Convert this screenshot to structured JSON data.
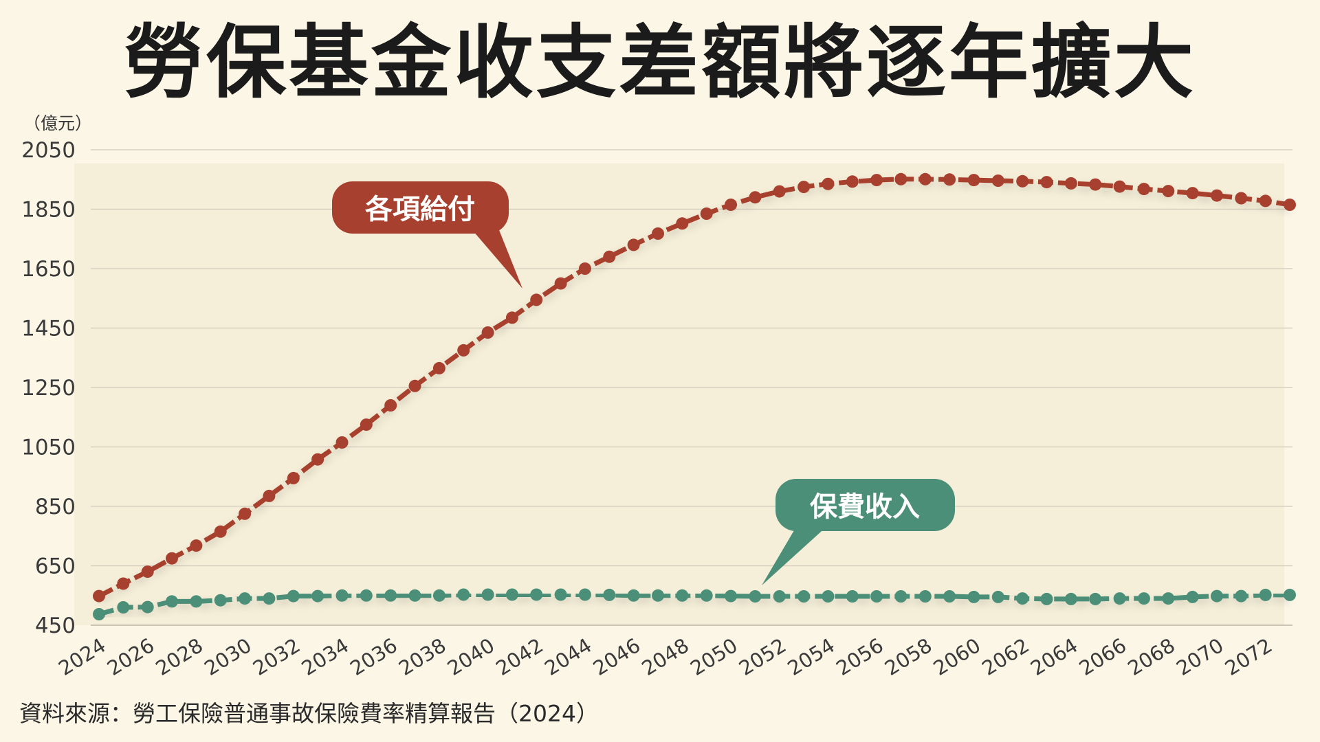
{
  "title": "勞保基金收支差額將逐年擴大",
  "source": "資料來源：勞工保險普通事故保險費率精算報告（2024）",
  "chart_data": {
    "type": "line",
    "unit_label": "（億元）",
    "ylim": [
      450,
      2050
    ],
    "yticks": [
      450,
      650,
      850,
      1050,
      1250,
      1450,
      1650,
      1850,
      2050
    ],
    "x": [
      2024,
      2025,
      2026,
      2027,
      2028,
      2029,
      2030,
      2031,
      2032,
      2033,
      2034,
      2035,
      2036,
      2037,
      2038,
      2039,
      2040,
      2041,
      2042,
      2043,
      2044,
      2045,
      2046,
      2047,
      2048,
      2049,
      2050,
      2051,
      2052,
      2053,
      2054,
      2055,
      2056,
      2057,
      2058,
      2059,
      2060,
      2061,
      2062,
      2063,
      2064,
      2065,
      2066,
      2067,
      2068,
      2069,
      2070,
      2071,
      2072,
      2073
    ],
    "xticks": [
      "2024",
      "2026",
      "2028",
      "2030",
      "2032",
      "2034",
      "2036",
      "2038",
      "2040",
      "2042",
      "2044",
      "2046",
      "2048",
      "2050",
      "2052",
      "2054",
      "2056",
      "2058",
      "2060",
      "2062",
      "2064",
      "2066",
      "2068",
      "2070",
      "2072"
    ],
    "grid": true,
    "series": [
      {
        "name": "各項給付",
        "color": "#a8402f",
        "values": [
          548,
          590,
          630,
          675,
          718,
          765,
          825,
          885,
          945,
          1008,
          1065,
          1125,
          1190,
          1255,
          1315,
          1375,
          1435,
          1485,
          1545,
          1600,
          1650,
          1690,
          1730,
          1768,
          1802,
          1835,
          1865,
          1890,
          1910,
          1925,
          1935,
          1943,
          1948,
          1951,
          1951,
          1950,
          1948,
          1946,
          1944,
          1941,
          1937,
          1933,
          1926,
          1918,
          1911,
          1904,
          1896,
          1887,
          1878,
          1865
        ]
      },
      {
        "name": "保費收入",
        "color": "#4b8f78",
        "values": [
          487,
          510,
          511,
          530,
          530,
          534,
          540,
          540,
          548,
          548,
          550,
          550,
          550,
          550,
          550,
          553,
          553,
          553,
          553,
          553,
          553,
          552,
          550,
          550,
          550,
          550,
          548,
          547,
          547,
          547,
          547,
          547,
          547,
          547,
          547,
          547,
          545,
          545,
          540,
          538,
          538,
          538,
          540,
          540,
          540,
          545,
          548,
          548,
          552,
          552
        ]
      }
    ]
  }
}
